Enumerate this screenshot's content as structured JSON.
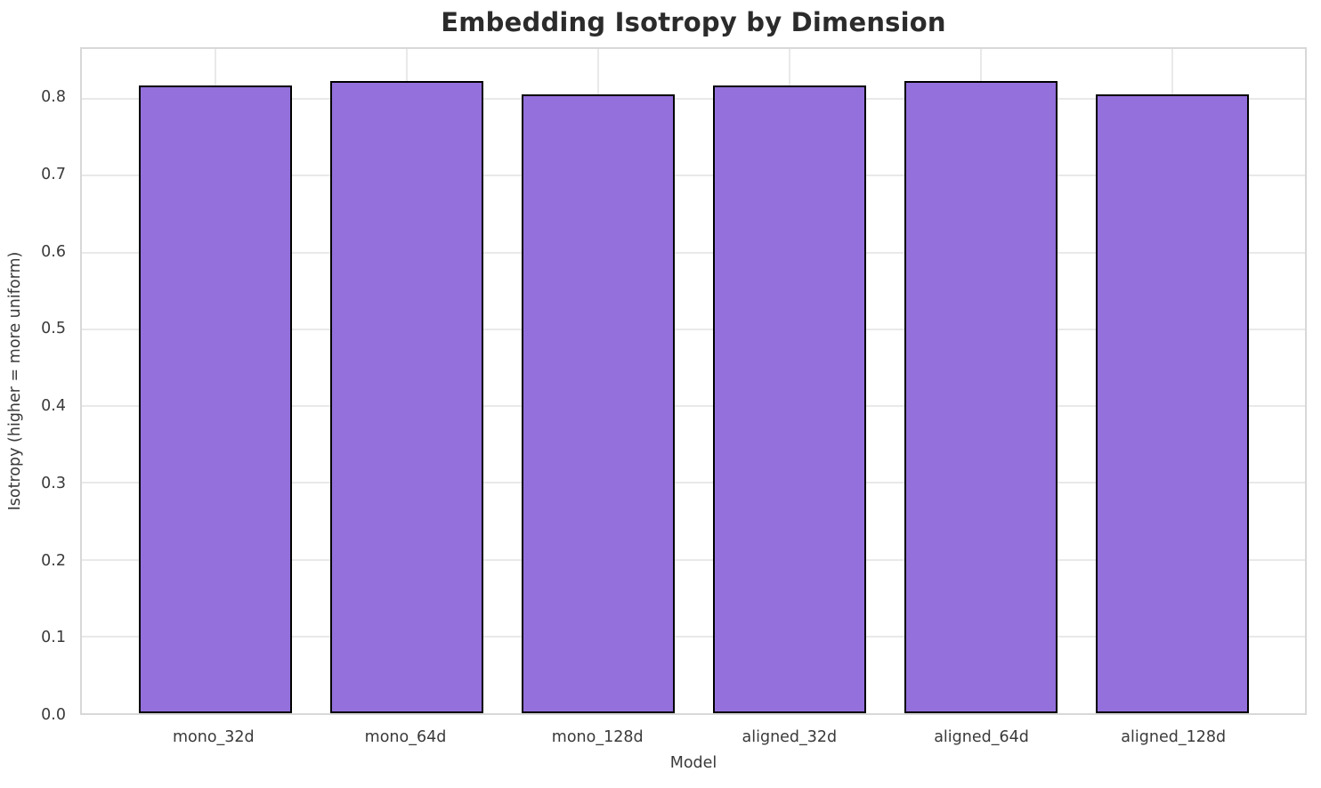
{
  "chart_data": {
    "type": "bar",
    "title": "Embedding Isotropy by Dimension",
    "xlabel": "Model",
    "ylabel": "Isotropy (higher = more uniform)",
    "categories": [
      "mono_32d",
      "mono_64d",
      "mono_128d",
      "aligned_32d",
      "aligned_64d",
      "aligned_128d"
    ],
    "values": [
      0.818,
      0.823,
      0.806,
      0.818,
      0.823,
      0.806
    ],
    "ylim": [
      0,
      0.865
    ],
    "yticks": [
      0.0,
      0.1,
      0.2,
      0.3,
      0.4,
      0.5,
      0.6,
      0.7,
      0.8
    ],
    "ytick_labels": [
      "0.0",
      "0.1",
      "0.2",
      "0.3",
      "0.4",
      "0.5",
      "0.6",
      "0.7",
      "0.8"
    ],
    "grid": true,
    "legend": false,
    "bar_width_fraction": 0.8,
    "colors": {
      "bar_fill": "#9370DB",
      "bar_edge": "#000000",
      "grid_line": "#e9e9e9",
      "spine": "#d8d8d8",
      "title_text": "#2b2b2b",
      "tick_text": "#3a3a3a"
    }
  }
}
